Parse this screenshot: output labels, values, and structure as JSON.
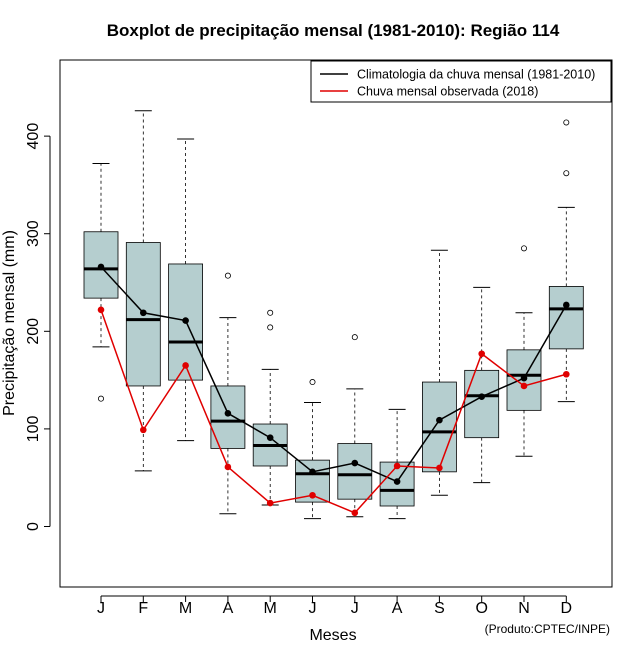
{
  "chart_data": {
    "type": "boxplot",
    "title": "Boxplot de precipitação mensal (1981-2010): Região 114",
    "xlabel": "Meses",
    "ylabel": "Precipitação mensal (mm)",
    "credit": "(Produto:CPTEC/INPE)",
    "ylim": [
      -62,
      478
    ],
    "yticks": [
      0,
      100,
      200,
      300,
      400
    ],
    "categories": [
      "J",
      "F",
      "M",
      "A",
      "M",
      "J",
      "J",
      "A",
      "S",
      "O",
      "N",
      "D"
    ],
    "boxes": [
      {
        "whisker_low": 184,
        "q1": 234,
        "median": 264,
        "q3": 302,
        "whisker_high": 372,
        "outliers": [
          131
        ]
      },
      {
        "whisker_low": 57,
        "q1": 144,
        "median": 212,
        "q3": 291,
        "whisker_high": 426,
        "outliers": []
      },
      {
        "whisker_low": 88,
        "q1": 150,
        "median": 189,
        "q3": 269,
        "whisker_high": 397,
        "outliers": []
      },
      {
        "whisker_low": 13,
        "q1": 80,
        "median": 108,
        "q3": 144,
        "whisker_high": 214,
        "outliers": [
          257
        ]
      },
      {
        "whisker_low": 22,
        "q1": 62,
        "median": 83,
        "q3": 105,
        "whisker_high": 161,
        "outliers": [
          204,
          219
        ]
      },
      {
        "whisker_low": 8,
        "q1": 25,
        "median": 54,
        "q3": 68,
        "whisker_high": 127,
        "outliers": [
          148
        ]
      },
      {
        "whisker_low": 10,
        "q1": 28,
        "median": 53,
        "q3": 85,
        "whisker_high": 141,
        "outliers": [
          194
        ]
      },
      {
        "whisker_low": 8,
        "q1": 21,
        "median": 37,
        "q3": 66,
        "whisker_high": 120,
        "outliers": []
      },
      {
        "whisker_low": 32,
        "q1": 56,
        "median": 97,
        "q3": 148,
        "whisker_high": 283,
        "outliers": []
      },
      {
        "whisker_low": 45,
        "q1": 91,
        "median": 134,
        "q3": 160,
        "whisker_high": 245,
        "outliers": []
      },
      {
        "whisker_low": 72,
        "q1": 119,
        "median": 155,
        "q3": 181,
        "whisker_high": 219,
        "outliers": [
          285
        ]
      },
      {
        "whisker_low": 128,
        "q1": 182,
        "median": 223,
        "q3": 246,
        "whisker_high": 327,
        "outliers": [
          362,
          414
        ]
      }
    ],
    "series": [
      {
        "name": "Climatologia da chuva mensal (1981-2010)",
        "color": "#000000",
        "values": [
          266,
          219,
          211,
          116,
          91,
          56,
          65,
          46,
          109,
          133,
          152,
          227
        ]
      },
      {
        "name": "Chuva mensal observada (2018)",
        "color": "#e00000",
        "values": [
          222,
          99,
          165,
          61,
          24,
          32,
          14,
          62,
          60,
          177,
          144,
          156
        ]
      }
    ],
    "box_fill": "#b5cecf",
    "legend_position": "top-right"
  }
}
